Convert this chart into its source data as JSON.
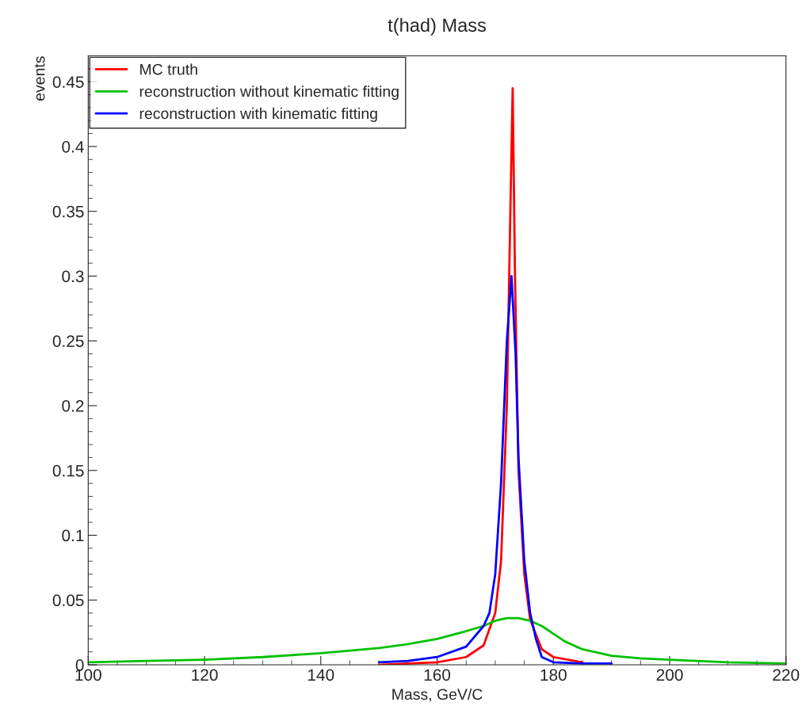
{
  "chart_data": {
    "type": "line",
    "title": "t(had) Mass",
    "xlabel": "Mass, GeV/C",
    "ylabel": "events",
    "xlim": [
      100,
      220
    ],
    "xticks": [
      100,
      120,
      140,
      160,
      180,
      200,
      220
    ],
    "ylim": [
      0,
      0.47
    ],
    "yticks": [
      0,
      0.05,
      0.1,
      0.15,
      0.2,
      0.25,
      0.3,
      0.35,
      0.4,
      0.45
    ],
    "legend": "top left",
    "grid": false,
    "series": [
      {
        "name": "MC truth",
        "color": "#ff0000",
        "x": [
          150,
          160,
          165,
          168,
          170,
          171,
          172,
          172.6,
          173,
          173.4,
          174,
          175,
          176,
          178,
          180,
          185
        ],
        "values": [
          0.0,
          0.002,
          0.006,
          0.015,
          0.04,
          0.08,
          0.2,
          0.35,
          0.445,
          0.3,
          0.15,
          0.07,
          0.035,
          0.012,
          0.006,
          0.002
        ]
      },
      {
        "name": "reconstruction without kinematic fitting",
        "color": "#00c000",
        "x": [
          100,
          110,
          120,
          130,
          140,
          150,
          155,
          160,
          165,
          168,
          170,
          172,
          174,
          176,
          178,
          180,
          182,
          185,
          190,
          195,
          200,
          210,
          220
        ],
        "values": [
          0.002,
          0.003,
          0.004,
          0.006,
          0.009,
          0.013,
          0.016,
          0.02,
          0.026,
          0.03,
          0.034,
          0.036,
          0.036,
          0.034,
          0.03,
          0.024,
          0.018,
          0.012,
          0.007,
          0.005,
          0.004,
          0.002,
          0.001
        ]
      },
      {
        "name": "reconstruction with kinematic fitting",
        "color": "#0000ff",
        "x": [
          150,
          155,
          160,
          165,
          168,
          169,
          170,
          171,
          172,
          172.8,
          173.5,
          174,
          175,
          176,
          177,
          178,
          180,
          185,
          190
        ],
        "values": [
          0.002,
          0.003,
          0.006,
          0.014,
          0.03,
          0.04,
          0.07,
          0.14,
          0.25,
          0.3,
          0.24,
          0.16,
          0.08,
          0.04,
          0.02,
          0.006,
          0.002,
          0.001,
          0.001
        ]
      }
    ]
  }
}
